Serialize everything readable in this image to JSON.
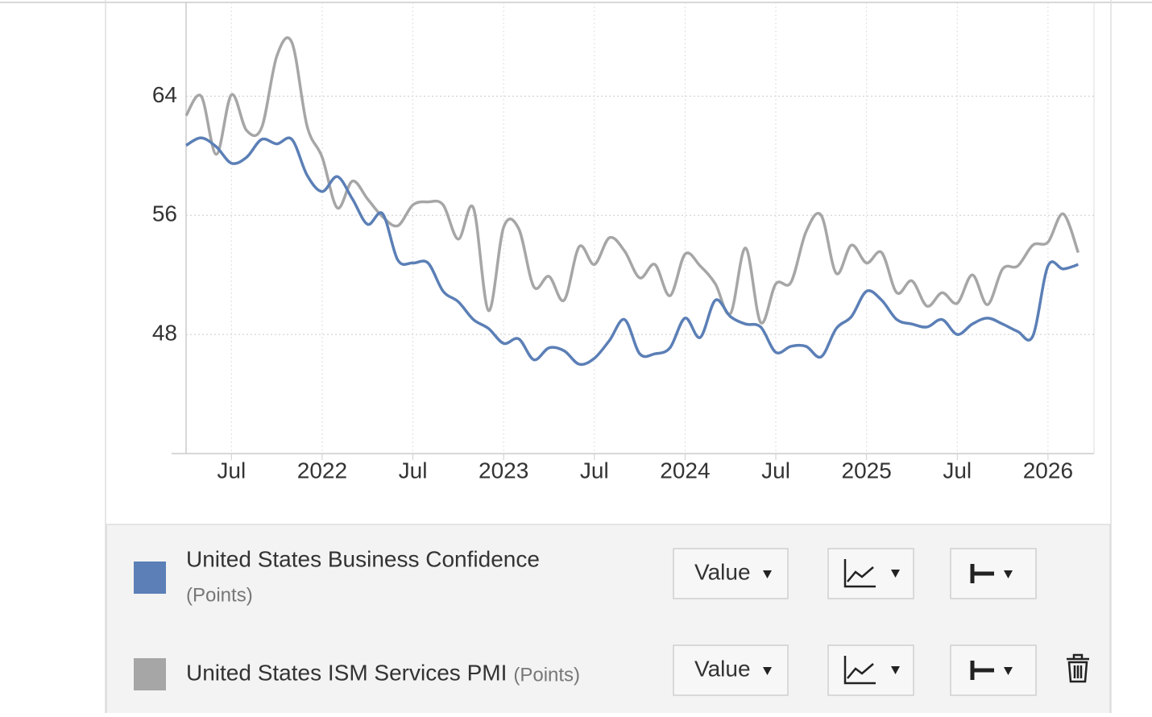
{
  "chart_data": {
    "type": "line",
    "x": [
      "2021-04",
      "2021-05",
      "2021-06",
      "2021-07",
      "2021-08",
      "2021-09",
      "2021-10",
      "2021-11",
      "2021-12",
      "2022-01",
      "2022-02",
      "2022-03",
      "2022-04",
      "2022-05",
      "2022-06",
      "2022-07",
      "2022-08",
      "2022-09",
      "2022-10",
      "2022-11",
      "2022-12",
      "2023-01",
      "2023-02",
      "2023-03",
      "2023-04",
      "2023-05",
      "2023-06",
      "2023-07",
      "2023-08",
      "2023-09",
      "2023-10",
      "2023-11",
      "2023-12",
      "2024-01",
      "2024-02",
      "2024-03",
      "2024-04",
      "2024-05",
      "2024-06",
      "2024-07",
      "2024-08",
      "2024-09",
      "2024-10",
      "2024-11",
      "2024-12",
      "2025-01",
      "2025-02",
      "2025-03",
      "2025-04",
      "2025-05",
      "2025-06",
      "2025-07",
      "2025-08",
      "2025-09",
      "2025-10",
      "2025-11",
      "2025-12",
      "2026-01",
      "2026-02",
      "2026-03"
    ],
    "xticks": [
      {
        "value": "2021-07",
        "label": "Jul"
      },
      {
        "value": "2022-01",
        "label": "2022"
      },
      {
        "value": "2022-07",
        "label": "Jul"
      },
      {
        "value": "2023-01",
        "label": "2023"
      },
      {
        "value": "2023-07",
        "label": "Jul"
      },
      {
        "value": "2024-01",
        "label": "2024"
      },
      {
        "value": "2024-07",
        "label": "Jul"
      },
      {
        "value": "2025-01",
        "label": "2025"
      },
      {
        "value": "2025-07",
        "label": "Jul"
      },
      {
        "value": "2026-01",
        "label": "2026"
      }
    ],
    "ylim": [
      40,
      70.3
    ],
    "yticks": [
      48,
      56,
      64
    ],
    "grid": true,
    "series": [
      {
        "name": "United States Business Confidence",
        "unit": "(Points)",
        "color": "#5b7fb6",
        "values": [
          60.7,
          61.2,
          60.6,
          59.5,
          59.9,
          61.1,
          60.8,
          61.1,
          58.7,
          57.6,
          58.6,
          57.1,
          55.4,
          56.1,
          53.0,
          52.8,
          52.8,
          50.9,
          50.2,
          49.0,
          48.4,
          47.4,
          47.7,
          46.3,
          47.1,
          46.9,
          46.0,
          46.4,
          47.6,
          49.0,
          46.7,
          46.7,
          47.1,
          49.1,
          47.8,
          50.3,
          49.2,
          48.7,
          48.5,
          46.8,
          47.2,
          47.2,
          46.5,
          48.4,
          49.2,
          50.9,
          50.3,
          49.0,
          48.7,
          48.5,
          49.0,
          48.0,
          48.7,
          49.1,
          48.7,
          48.2,
          47.9,
          52.6,
          52.4,
          52.7
        ]
      },
      {
        "name": "United States ISM Services PMI",
        "unit": "(Points)",
        "color": "#a6a6a6",
        "values": [
          62.7,
          64.0,
          60.1,
          64.1,
          61.7,
          61.9,
          66.7,
          67.6,
          62.0,
          59.9,
          56.5,
          58.3,
          57.1,
          55.9,
          55.3,
          56.7,
          56.9,
          56.7,
          54.4,
          56.5,
          49.6,
          55.2,
          55.1,
          51.2,
          51.9,
          50.3,
          53.9,
          52.7,
          54.5,
          53.6,
          51.8,
          52.7,
          50.6,
          53.4,
          52.6,
          51.4,
          49.4,
          53.8,
          48.8,
          51.4,
          51.5,
          54.9,
          56.0,
          52.1,
          54.0,
          52.8,
          53.5,
          50.8,
          51.6,
          49.9,
          50.8,
          50.1,
          52.0,
          50.0,
          52.4,
          52.6,
          54.0,
          54.2,
          56.1,
          53.5
        ]
      }
    ]
  },
  "controls": {
    "buttons": [
      "Value",
      "Value"
    ]
  }
}
